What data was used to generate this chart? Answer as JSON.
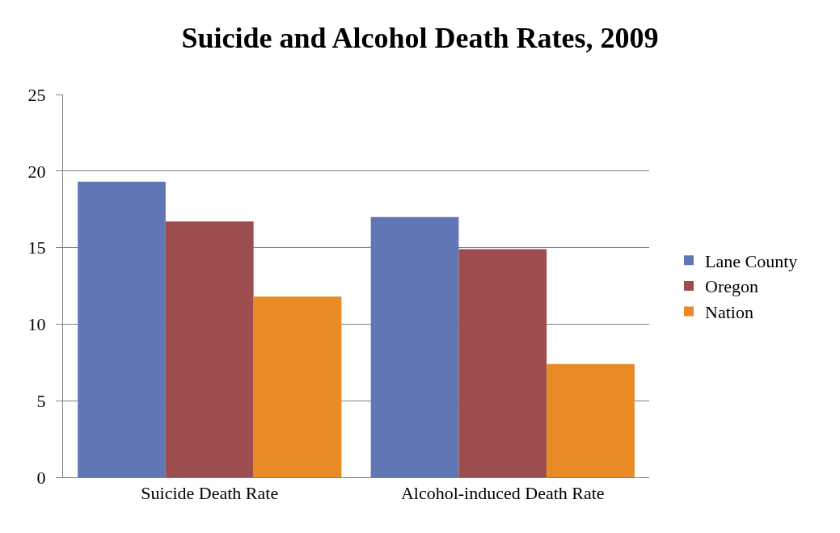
{
  "chart_data": {
    "type": "bar",
    "title": "Suicide and Alcohol Death Rates, 2009",
    "categories": [
      "Suicide Death Rate",
      "Alcohol-induced Death Rate"
    ],
    "series": [
      {
        "name": "Lane County",
        "color": "#6177b5",
        "values": [
          19.3,
          17.0
        ]
      },
      {
        "name": "Oregon",
        "color": "#9e4d4e",
        "values": [
          16.7,
          14.9
        ]
      },
      {
        "name": "Nation",
        "color": "#e88a25",
        "values": [
          11.8,
          7.4
        ]
      }
    ],
    "ylim": [
      0,
      25
    ],
    "yticks": [
      0,
      5,
      10,
      15,
      20,
      25
    ],
    "grid": "y",
    "legend": "right"
  }
}
